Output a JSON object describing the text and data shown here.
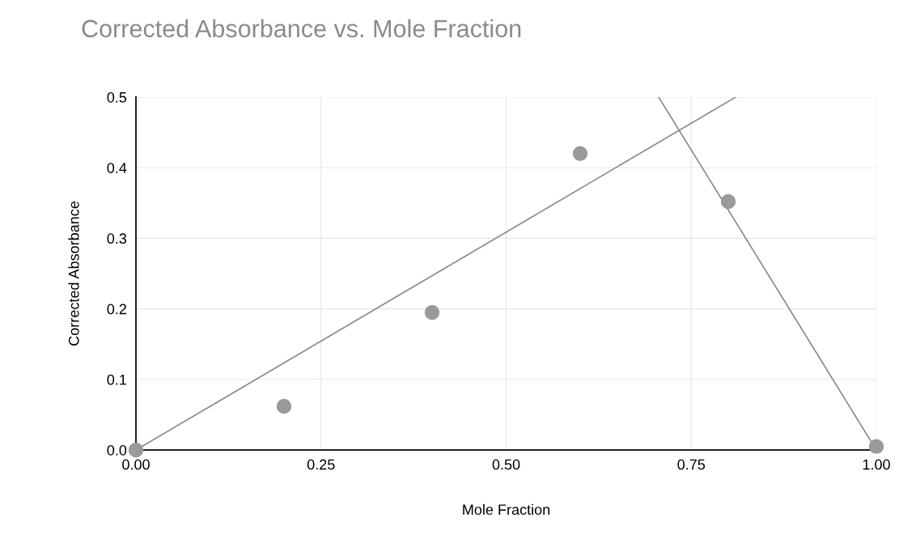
{
  "chart_data": {
    "type": "scatter",
    "title": "Corrected Absorbance vs. Mole Fraction",
    "xlabel": "Mole Fraction",
    "ylabel": "Corrected Absorbance",
    "x": [
      0,
      0.2,
      0.4,
      0.6,
      0.8,
      1.0
    ],
    "series": [
      {
        "marker": "circle",
        "color": "#9a9a9a",
        "values": [
          0.0,
          0.062,
          0.195,
          0.42,
          0.352,
          0.005
        ]
      },
      {
        "type": "line",
        "color": "#8a8a8a",
        "x": [
          0,
          0.81
        ],
        "values": [
          0,
          0.5
        ]
      },
      {
        "type": "line",
        "color": "#8a8a8a",
        "x": [
          0.706,
          1.0
        ],
        "values": [
          0.5,
          0
        ]
      }
    ],
    "xlim": [
      0,
      1.0
    ],
    "ylim": [
      0,
      0.5
    ],
    "xticks": [
      {
        "value": 0,
        "label": "0.00"
      },
      {
        "value": 0.25,
        "label": "0.25"
      },
      {
        "value": 0.5,
        "label": "0.50"
      },
      {
        "value": 0.75,
        "label": "0.75"
      },
      {
        "value": 1.0,
        "label": "1.00"
      }
    ],
    "yticks": [
      {
        "value": 0,
        "label": "0.0"
      },
      0.1,
      0.2,
      0.3,
      0.4,
      0.5
    ],
    "grid": true
  }
}
